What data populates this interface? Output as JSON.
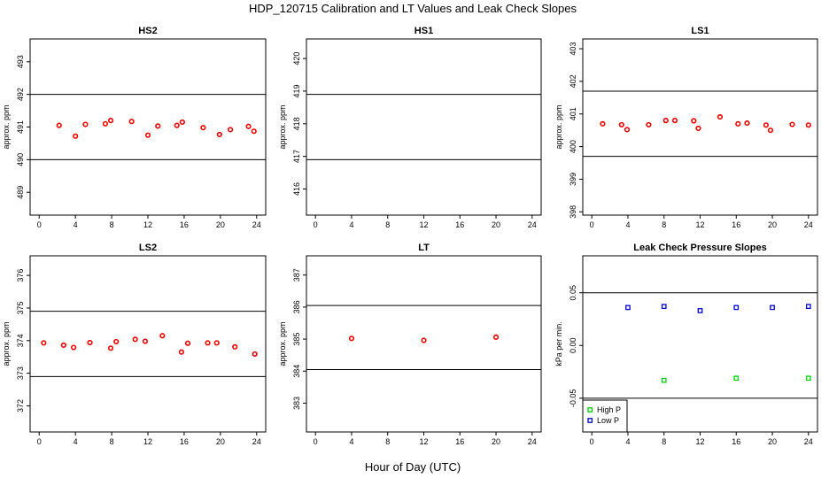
{
  "title": "HDP_120715  Calibration and LT Values and Leak Check Slopes",
  "x_axis_label": "Hour of Day (UTC)",
  "colors": {
    "cal": "#ee0000",
    "high": "#00cc00",
    "low": "#0000cc",
    "axis": "#000000"
  },
  "chart_data": [
    {
      "type": "scatter",
      "title": "HS2",
      "ylabel": "approx. ppm",
      "xlim": [
        -1,
        25
      ],
      "ylim": [
        488.3,
        493.7
      ],
      "xticks": [
        0,
        4,
        8,
        12,
        16,
        20,
        24
      ],
      "yticks": [
        489,
        490,
        491,
        492,
        493
      ],
      "hlines": [
        490,
        492
      ],
      "series": [
        {
          "color_key": "cal",
          "x": [
            2.2,
            4.0,
            5.1,
            7.3,
            7.9,
            10.2,
            12.0,
            13.1,
            15.2,
            15.8,
            18.1,
            19.9,
            21.1,
            23.1,
            23.7
          ],
          "y": [
            491.05,
            490.72,
            491.08,
            491.1,
            491.2,
            491.17,
            490.75,
            491.03,
            491.05,
            491.15,
            490.98,
            490.77,
            490.92,
            491.02,
            490.87
          ]
        }
      ]
    },
    {
      "type": "scatter",
      "title": "HS1",
      "ylabel": "approx. ppm",
      "xlim": [
        -1,
        25
      ],
      "ylim": [
        415.2,
        420.6
      ],
      "xticks": [
        0,
        4,
        8,
        12,
        16,
        20,
        24
      ],
      "yticks": [
        416,
        417,
        418,
        419,
        420
      ],
      "hlines": [
        416.9,
        418.9
      ],
      "series": [
        {
          "color_key": "cal",
          "x": [],
          "y": []
        }
      ]
    },
    {
      "type": "scatter",
      "title": "LS1",
      "ylabel": "approx. ppm",
      "xlim": [
        -1,
        25
      ],
      "ylim": [
        397.9,
        403.3
      ],
      "xticks": [
        0,
        4,
        8,
        12,
        16,
        20,
        24
      ],
      "yticks": [
        398,
        399,
        400,
        401,
        402,
        403
      ],
      "hlines": [
        399.7,
        401.7
      ],
      "series": [
        {
          "color_key": "cal",
          "x": [
            1.2,
            3.3,
            3.9,
            6.3,
            8.2,
            9.2,
            11.3,
            11.8,
            14.2,
            16.2,
            17.2,
            19.3,
            19.8,
            22.2,
            24.0
          ],
          "y": [
            400.7,
            400.67,
            400.52,
            400.67,
            400.8,
            400.8,
            400.79,
            400.56,
            400.91,
            400.7,
            400.72,
            400.66,
            400.5,
            400.68,
            400.66
          ]
        }
      ]
    },
    {
      "type": "scatter",
      "title": "LS2",
      "ylabel": "approx. ppm",
      "xlim": [
        -1,
        25
      ],
      "ylim": [
        371.2,
        376.6
      ],
      "xticks": [
        0,
        4,
        8,
        12,
        16,
        20,
        24
      ],
      "yticks": [
        372,
        373,
        374,
        375,
        376
      ],
      "hlines": [
        372.9,
        374.9
      ],
      "series": [
        {
          "color_key": "cal",
          "x": [
            0.5,
            2.7,
            3.8,
            5.6,
            7.9,
            8.5,
            10.6,
            11.7,
            13.6,
            15.7,
            16.4,
            18.6,
            19.6,
            21.6,
            23.8
          ],
          "y": [
            373.93,
            373.86,
            373.79,
            373.94,
            373.77,
            373.97,
            374.04,
            373.98,
            374.15,
            373.65,
            373.92,
            373.93,
            373.93,
            373.81,
            373.59
          ]
        }
      ]
    },
    {
      "type": "scatter",
      "title": "LT",
      "ylabel": "approx. ppm",
      "xlim": [
        -1,
        25
      ],
      "ylim": [
        382.1,
        387.6
      ],
      "xticks": [
        0,
        4,
        8,
        12,
        16,
        20,
        24
      ],
      "yticks": [
        383,
        384,
        385,
        386,
        387
      ],
      "hlines": [
        384.05,
        386.05
      ],
      "series": [
        {
          "color_key": "cal",
          "x": [
            4.0,
            12.0,
            20.0
          ],
          "y": [
            385.02,
            384.96,
            385.06
          ]
        }
      ]
    },
    {
      "type": "scatter",
      "title": "Leak Check Pressure Slopes",
      "ylabel": "kPa per min.",
      "xlim": [
        -1,
        25
      ],
      "ylim": [
        -0.082,
        0.085
      ],
      "xticks": [
        0,
        4,
        8,
        12,
        16,
        20,
        24
      ],
      "yticks": [
        -0.05,
        0.0,
        0.05
      ],
      "ytick_labels": [
        "-0.05",
        "0.00",
        "0.05"
      ],
      "hlines": [
        -0.05,
        0.05
      ],
      "legend": {
        "placement": "bottom-left",
        "entries": [
          "High P",
          "Low P"
        ]
      },
      "series": [
        {
          "name": "High P",
          "color_key": "high",
          "x": [
            8,
            16,
            24
          ],
          "y": [
            -0.033,
            -0.031,
            -0.031
          ]
        },
        {
          "name": "Low P",
          "color_key": "low",
          "x": [
            4,
            8,
            12,
            16,
            20,
            24
          ],
          "y": [
            0.036,
            0.037,
            0.033,
            0.036,
            0.036,
            0.037
          ]
        }
      ]
    }
  ]
}
